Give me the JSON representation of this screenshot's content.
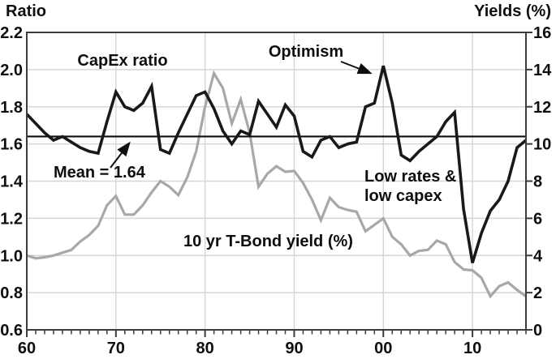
{
  "chart_data": {
    "type": "line",
    "title": "",
    "grid": true,
    "legend": "none",
    "left_axis": {
      "title": "Ratio",
      "min": 0.6,
      "max": 2.2,
      "ticks": [
        "2.2",
        "2.0",
        "1.8",
        "1.6",
        "1.4",
        "1.2",
        "1.0",
        "0.8",
        "0.6"
      ]
    },
    "right_axis": {
      "title": "Yields (%)",
      "min": 0,
      "max": 16,
      "ticks": [
        "16",
        "14",
        "12",
        "10",
        "8",
        "6",
        "4",
        "2",
        "0"
      ]
    },
    "x_axis": {
      "start_year": 1960,
      "end_year": 2016,
      "minor_tick_interval": 1,
      "decades": [
        {
          "label": "60",
          "year": 1960
        },
        {
          "label": "70",
          "year": 1970
        },
        {
          "label": "80",
          "year": 1980
        },
        {
          "label": "90",
          "year": 1990
        },
        {
          "label": "00",
          "year": 2000
        },
        {
          "label": "10",
          "year": 2010
        }
      ]
    },
    "x": [
      1960,
      1961,
      1962,
      1963,
      1964,
      1965,
      1966,
      1967,
      1968,
      1969,
      1970,
      1971,
      1972,
      1973,
      1974,
      1975,
      1976,
      1977,
      1978,
      1979,
      1980,
      1981,
      1982,
      1983,
      1984,
      1985,
      1986,
      1987,
      1988,
      1989,
      1990,
      1991,
      1992,
      1993,
      1994,
      1995,
      1996,
      1997,
      1998,
      1999,
      2000,
      2001,
      2002,
      2003,
      2004,
      2005,
      2006,
      2007,
      2008,
      2009,
      2010,
      2011,
      2012,
      2013,
      2014,
      2015,
      2016
    ],
    "series": [
      {
        "name": "CapEx ratio",
        "axis": "left",
        "color": "#191919",
        "values": [
          1.76,
          1.71,
          1.66,
          1.62,
          1.64,
          1.61,
          1.58,
          1.56,
          1.55,
          1.72,
          1.88,
          1.8,
          1.78,
          1.82,
          1.91,
          1.57,
          1.55,
          1.66,
          1.76,
          1.86,
          1.88,
          1.79,
          1.67,
          1.6,
          1.67,
          1.65,
          1.83,
          1.76,
          1.69,
          1.81,
          1.75,
          1.56,
          1.53,
          1.62,
          1.64,
          1.58,
          1.6,
          1.61,
          1.8,
          1.82,
          2.02,
          1.82,
          1.54,
          1.51,
          1.56,
          1.6,
          1.64,
          1.72,
          1.77,
          1.25,
          0.96,
          1.12,
          1.24,
          1.3,
          1.4,
          1.58,
          1.62
        ]
      },
      {
        "name": "10 yr T-Bond yield (%)",
        "axis": "right",
        "color": "#a8a8a8",
        "values": [
          4.0,
          3.85,
          3.9,
          4.0,
          4.15,
          4.3,
          4.75,
          5.1,
          5.6,
          6.7,
          7.2,
          6.2,
          6.2,
          6.7,
          7.4,
          8.0,
          7.7,
          7.25,
          8.2,
          9.6,
          12.0,
          13.8,
          13.0,
          11.1,
          12.4,
          10.6,
          7.7,
          8.4,
          8.8,
          8.5,
          8.55,
          7.9,
          7.0,
          5.9,
          7.1,
          6.6,
          6.45,
          6.35,
          5.3,
          5.65,
          6.0,
          5.0,
          4.6,
          4.0,
          4.25,
          4.3,
          4.8,
          4.6,
          3.65,
          3.25,
          3.2,
          2.8,
          1.8,
          2.35,
          2.55,
          2.15,
          1.8
        ]
      }
    ],
    "mean_line": {
      "value": 1.64,
      "label": "Mean = 1.64"
    },
    "annotations": {
      "labels": {
        "capex": "CapEx ratio",
        "optimism": "Optimism",
        "tbond": "10 yr T-Bond yield (%)",
        "low_rates_line1": "Low rates &",
        "low_rates_line2": "low capex"
      },
      "arrows": [
        {
          "name": "optimism-arrow",
          "from": [
            420,
            76
          ],
          "to": [
            456,
            90
          ]
        },
        {
          "name": "mean-arrow",
          "from": [
            136,
            207
          ],
          "to": [
            159,
            177
          ]
        }
      ]
    },
    "style": {
      "background": "#ffffff",
      "black": "#191919",
      "gray": "#a8a8a8",
      "grid_color": "#d6d6d6",
      "axis_color": "#3d3d3d",
      "text_color": "#0e0e0e"
    }
  }
}
